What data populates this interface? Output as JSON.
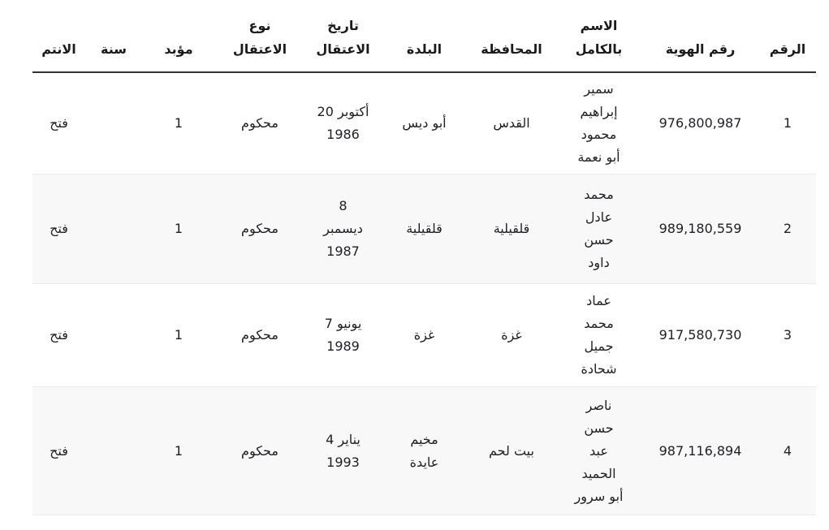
{
  "colors": {
    "row_alt": "#f8f8f8",
    "row_border": "#ebebeb",
    "header_border": "#323232",
    "text": "#202124"
  },
  "table": {
    "columns": [
      {
        "key": "raqm",
        "label": "الرقم"
      },
      {
        "key": "id",
        "label": "رقم الهوية"
      },
      {
        "key": "name",
        "label": "الاسم\nبالكامل"
      },
      {
        "key": "gov",
        "label": "المحافظة"
      },
      {
        "key": "town",
        "label": "البلدة"
      },
      {
        "key": "date",
        "label": "تاريخ\nالاعتقال"
      },
      {
        "key": "type",
        "label": "نوع\nالاعتقال"
      },
      {
        "key": "life",
        "label": "مؤبد"
      },
      {
        "key": "years",
        "label": "سنة"
      },
      {
        "key": "aff",
        "label": "الانتم"
      }
    ],
    "rows": [
      {
        "raqm": "1",
        "id": "976,800,987",
        "name": "سمير\nإبراهيم\nمحمود\nأبو نعمة",
        "gov": "القدس",
        "town": "أبو ديس",
        "date": "20 أكتوبر\n1986",
        "type": "محكوم",
        "life": "1",
        "years": "",
        "aff": "فتح"
      },
      {
        "raqm": "2",
        "id": "989,180,559",
        "name": "محمد\nعادل\nحسن\nداود",
        "gov": "قلقيلية",
        "town": "قلقيلية",
        "date": "8\nديسمبر\n1987",
        "type": "محكوم",
        "life": "1",
        "years": "",
        "aff": "فتح"
      },
      {
        "raqm": "3",
        "id": "917,580,730",
        "name": "عماد\nمحمد\nجميل\nشحادة",
        "gov": "غزة",
        "town": "غزة",
        "date": "7 يونيو\n1989",
        "type": "محكوم",
        "life": "1",
        "years": "",
        "aff": "فتح"
      },
      {
        "raqm": "4",
        "id": "987,116,894",
        "name": "ناصر\nحسن\nعبد\nالحميد\nأبو سرور",
        "gov": "بيت لحم",
        "town": "مخيم\nعايدة",
        "date": "4 يناير\n1993",
        "type": "محكوم",
        "life": "1",
        "years": "",
        "aff": "فتح"
      }
    ]
  }
}
